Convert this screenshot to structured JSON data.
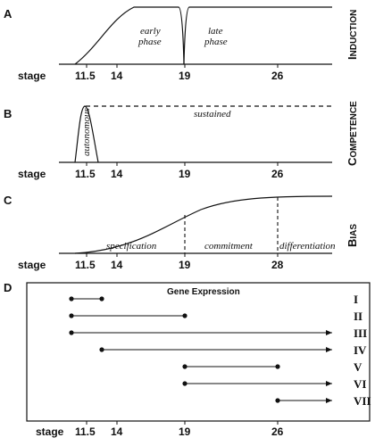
{
  "stage_label": "stage",
  "stage_ticks": [
    "11.5",
    "14",
    "19",
    "26"
  ],
  "panel_A": {
    "letter": "A",
    "title": "Induction",
    "early_line1": "early",
    "early_line2": "phase",
    "late_line1": "late",
    "late_line2": "phase"
  },
  "panel_B": {
    "letter": "B",
    "title": "Competence",
    "autonomous": "autonomous",
    "sustained": "sustained"
  },
  "panel_C": {
    "letter": "C",
    "title": "Bias",
    "ticks": [
      "11.5",
      "14",
      "19",
      "28"
    ],
    "specification": "specification",
    "commitment": "commitment",
    "differentiation": "differentiation"
  },
  "panel_D": {
    "letter": "D",
    "title": "Gene Expression",
    "rows": [
      {
        "label": "I",
        "start": 11.5,
        "end": 12.5,
        "open_ended": false
      },
      {
        "label": "II",
        "start": 11.5,
        "end": 19,
        "open_ended": false
      },
      {
        "label": "III",
        "start": 11.5,
        "end": null,
        "open_ended": true
      },
      {
        "label": "IV",
        "start": 12.5,
        "end": null,
        "open_ended": true
      },
      {
        "label": "V",
        "start": 19,
        "end": 26,
        "open_ended": false
      },
      {
        "label": "VI",
        "start": 19,
        "end": null,
        "open_ended": true
      },
      {
        "label": "VII",
        "start": 26,
        "end": null,
        "open_ended": true
      }
    ]
  }
}
